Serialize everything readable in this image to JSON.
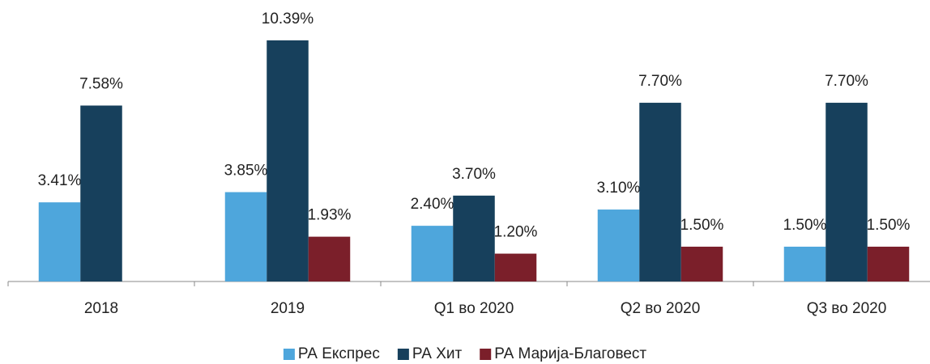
{
  "chart_data": {
    "type": "bar",
    "categories": [
      "2018",
      "2019",
      "Q1 во 2020",
      "Q2 во 2020",
      "Q3 во 2020"
    ],
    "series": [
      {
        "name": "РА Експрес",
        "color": "#4ea6dc",
        "values": [
          3.41,
          3.85,
          2.4,
          3.1,
          1.5
        ],
        "value_labels": [
          "3.41%",
          "3.85%",
          "2.40%",
          "3.10%",
          "1.50%"
        ]
      },
      {
        "name": "РА Хит",
        "color": "#17405c",
        "values": [
          7.58,
          10.39,
          3.7,
          7.7,
          7.7
        ],
        "value_labels": [
          "7.58%",
          "10.39%",
          "3.70%",
          "7.70%",
          "7.70%"
        ]
      },
      {
        "name": "РА Марија-Благовест",
        "color": "#7b1f2a",
        "values": [
          null,
          1.93,
          1.2,
          1.5,
          1.5
        ],
        "value_labels": [
          null,
          "1.93%",
          "1.20%",
          "1.50%",
          "1.50%"
        ]
      }
    ],
    "ylim": [
      0,
      11.5
    ],
    "legend": "bottom"
  }
}
